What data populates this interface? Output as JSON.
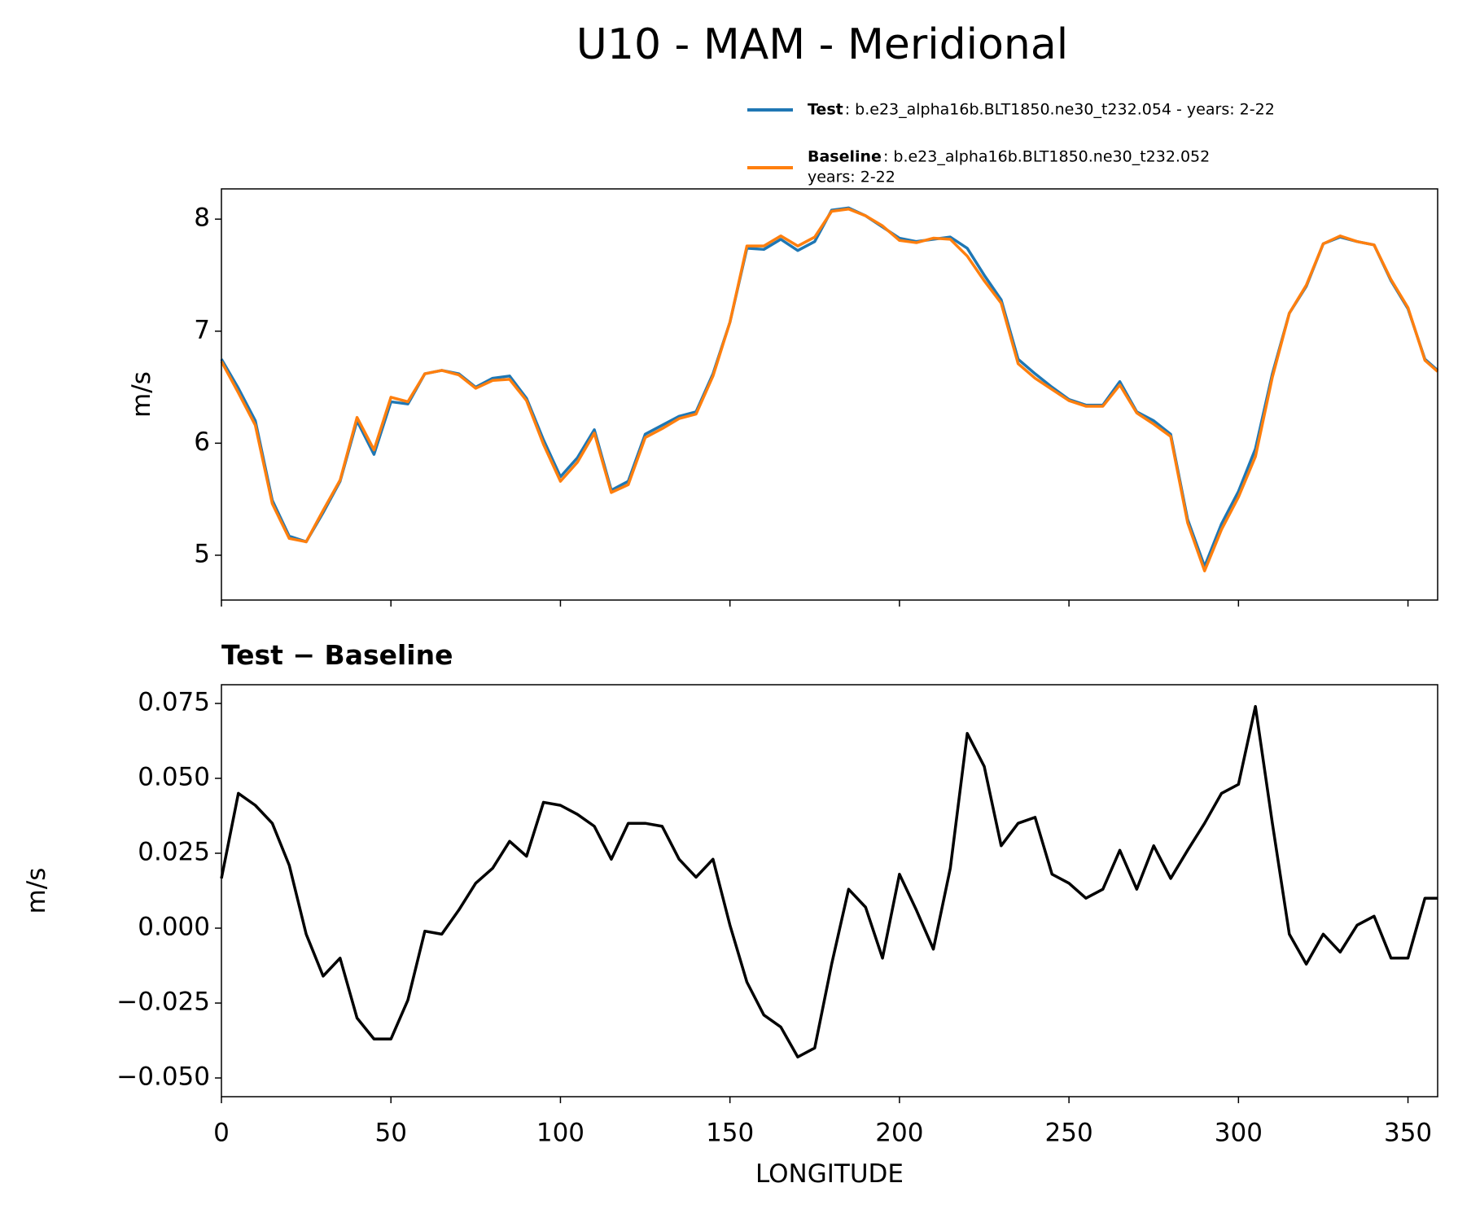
{
  "chart_data": [
    {
      "type": "line",
      "title": "U10 - MAM - Meridional",
      "ylabel": "m/s",
      "x": [
        0,
        5,
        10,
        15,
        20,
        25,
        30,
        35,
        40,
        45,
        50,
        55,
        60,
        65,
        70,
        75,
        80,
        85,
        90,
        95,
        100,
        105,
        110,
        115,
        120,
        125,
        130,
        135,
        140,
        145,
        150,
        155,
        160,
        165,
        170,
        175,
        180,
        185,
        190,
        195,
        200,
        205,
        210,
        215,
        220,
        225,
        230,
        235,
        240,
        245,
        250,
        255,
        260,
        265,
        270,
        275,
        280,
        285,
        290,
        295,
        300,
        305,
        310,
        315,
        320,
        325,
        330,
        335,
        340,
        345,
        350,
        355,
        358.75
      ],
      "series": [
        {
          "name": "Test",
          "description": [
            ": b.e23_alpha16b.BLT1850.ne30_t232.054 - years: 2-22"
          ],
          "color": "#1f77b4",
          "values": [
            6.75,
            6.49,
            6.2,
            5.49,
            5.17,
            5.12,
            5.38,
            5.66,
            6.2,
            5.9,
            6.37,
            6.35,
            6.62,
            6.65,
            6.62,
            6.5,
            6.58,
            6.6,
            6.4,
            6.03,
            5.7,
            5.87,
            6.12,
            5.58,
            5.66,
            6.08,
            6.16,
            6.24,
            6.28,
            6.62,
            7.08,
            7.74,
            7.73,
            7.82,
            7.72,
            7.8,
            8.08,
            8.1,
            8.03,
            7.93,
            7.83,
            7.8,
            7.82,
            7.84,
            7.74,
            7.5,
            7.28,
            6.75,
            6.62,
            6.5,
            6.39,
            6.34,
            6.34,
            6.55,
            6.28,
            6.2,
            6.08,
            5.32,
            4.9,
            5.28,
            5.57,
            5.95,
            6.62,
            7.16,
            7.4,
            7.78,
            7.84,
            7.8,
            7.77,
            7.45,
            7.2,
            6.75,
            6.65
          ]
        },
        {
          "name": "Baseline",
          "description": [
            ": b.e23_alpha16b.BLT1850.ne30_t232.052",
            "years: 2-22"
          ],
          "color": "#ff7f0e",
          "values": [
            6.73,
            6.45,
            6.16,
            5.46,
            5.15,
            5.12,
            5.4,
            5.67,
            6.23,
            5.94,
            6.41,
            6.37,
            6.62,
            6.65,
            6.61,
            6.49,
            6.56,
            6.57,
            6.38,
            5.99,
            5.66,
            5.83,
            6.09,
            5.56,
            5.63,
            6.05,
            6.13,
            6.22,
            6.26,
            6.6,
            7.08,
            7.76,
            7.76,
            7.85,
            7.76,
            7.84,
            8.07,
            8.09,
            8.03,
            7.94,
            7.81,
            7.79,
            7.83,
            7.82,
            7.67,
            7.45,
            7.25,
            6.71,
            6.58,
            6.48,
            6.38,
            6.33,
            6.33,
            6.52,
            6.27,
            6.17,
            6.06,
            5.29,
            4.86,
            5.23,
            5.52,
            5.88,
            6.59,
            7.16,
            7.41,
            7.78,
            7.85,
            7.8,
            7.77,
            7.46,
            7.21,
            6.74,
            6.64
          ]
        }
      ],
      "xlim": [
        0,
        358.75
      ],
      "xticks": [
        0,
        50,
        100,
        150,
        200,
        250,
        300,
        350
      ],
      "xticklabels": false,
      "ylim": [
        4.6,
        8.27
      ],
      "yticks": [
        5,
        6,
        7,
        8
      ],
      "legend": "upper right"
    },
    {
      "type": "line",
      "title": "Test − Baseline",
      "ylabel": "m/s",
      "xlabel": "LONGITUDE",
      "color": "#000000",
      "x": [
        0,
        5,
        10,
        15,
        20,
        25,
        30,
        35,
        40,
        45,
        50,
        55,
        60,
        65,
        70,
        75,
        80,
        85,
        90,
        95,
        100,
        105,
        110,
        115,
        120,
        125,
        130,
        135,
        140,
        145,
        150,
        155,
        160,
        165,
        170,
        175,
        180,
        185,
        190,
        195,
        200,
        205,
        210,
        215,
        220,
        225,
        230,
        235,
        240,
        245,
        250,
        255,
        260,
        265,
        270,
        275,
        280,
        285,
        290,
        295,
        300,
        305,
        310,
        315,
        320,
        325,
        330,
        335,
        340,
        345,
        350,
        355,
        358.75
      ],
      "values": [
        0.0166,
        0.045,
        0.041,
        0.035,
        0.021,
        -0.002,
        -0.016,
        -0.01,
        -0.03,
        -0.037,
        -0.037,
        -0.024,
        -0.001,
        -0.002,
        0.006,
        0.015,
        0.02,
        0.029,
        0.024,
        0.042,
        0.041,
        0.038,
        0.034,
        0.023,
        0.035,
        0.035,
        0.034,
        0.023,
        0.017,
        0.023,
        0.001,
        -0.018,
        -0.029,
        -0.033,
        -0.043,
        -0.04,
        -0.012,
        0.013,
        0.007,
        -0.01,
        0.018,
        0.006,
        -0.007,
        0.02,
        0.065,
        0.054,
        0.0275,
        0.035,
        0.037,
        0.018,
        0.015,
        0.01,
        0.013,
        0.026,
        0.013,
        0.0275,
        0.0166,
        0.026,
        0.035,
        0.045,
        0.048,
        0.074,
        0.035,
        -0.002,
        -0.012,
        -0.002,
        -0.008,
        0.001,
        0.004,
        -0.01,
        -0.01,
        0.01,
        0.01
      ],
      "xlim": [
        0,
        358.75
      ],
      "xticks": [
        0,
        50,
        100,
        150,
        200,
        250,
        300,
        350
      ],
      "xticklabels": true,
      "ylim": [
        -0.05625,
        0.08125
      ],
      "yticks": [
        {
          "value": -0.05,
          "label": "−0.050"
        },
        {
          "value": -0.025,
          "label": "−0.025"
        },
        {
          "value": 0,
          "label": "0.000"
        },
        {
          "value": 0.025,
          "label": "0.025"
        },
        {
          "value": 0.05,
          "label": "0.050"
        },
        {
          "value": 0.075,
          "label": "0.075"
        }
      ]
    }
  ]
}
